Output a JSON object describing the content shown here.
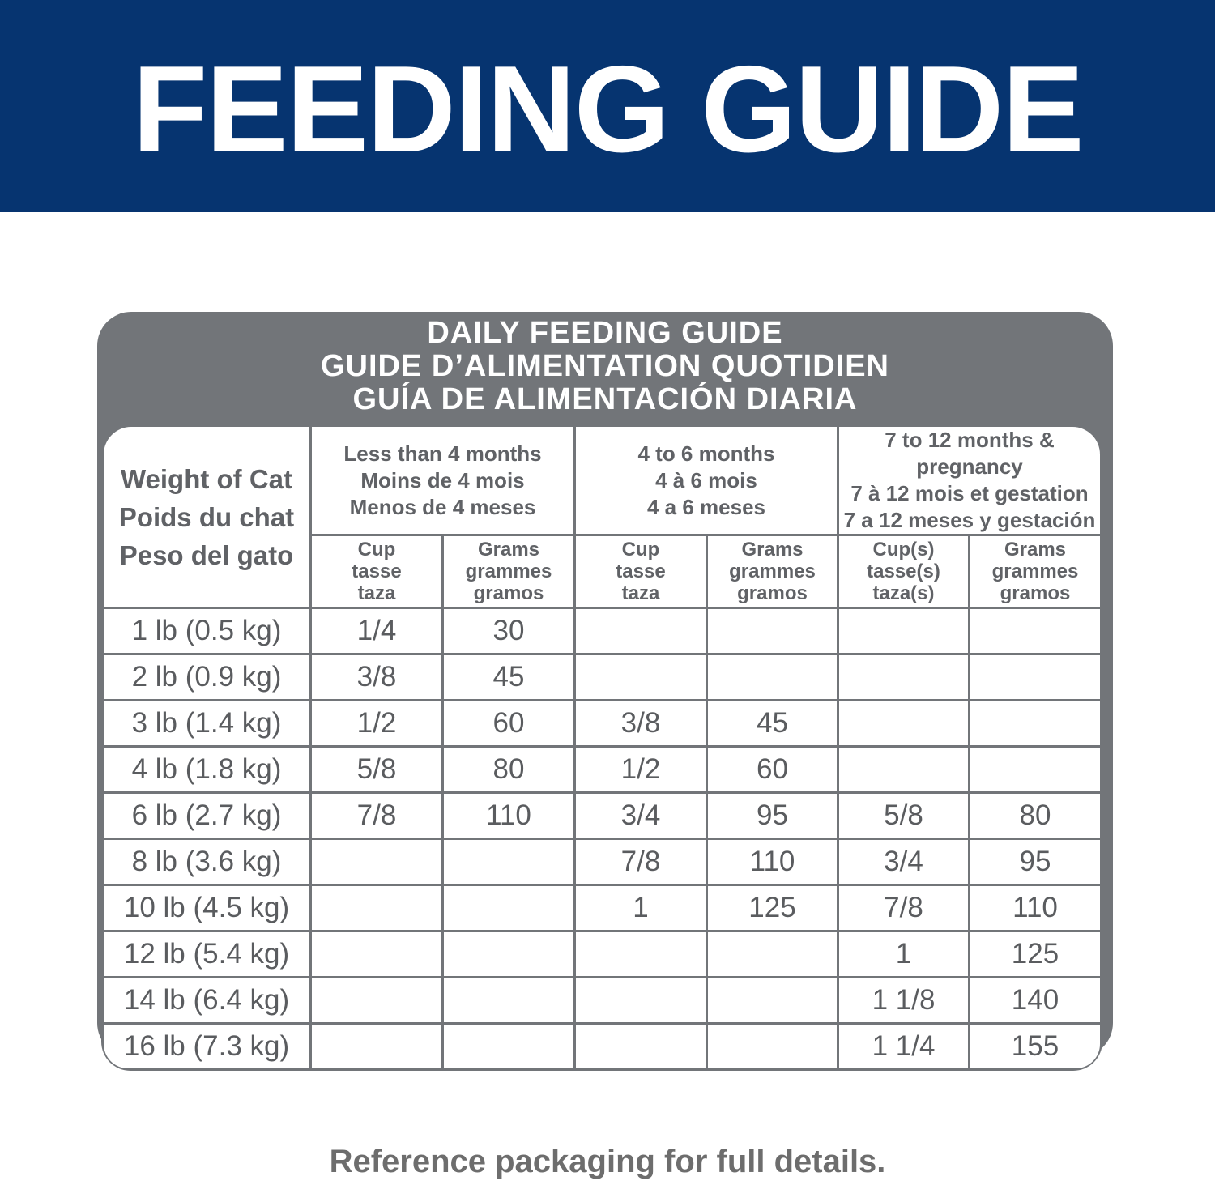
{
  "header": {
    "title": "FEEDING GUIDE"
  },
  "table": {
    "title": [
      "DAILY FEEDING GUIDE",
      "GUIDE D’ALIMENTATION QUOTIDIEN",
      "GUÍA DE ALIMENTACIÓN DIARIA"
    ],
    "weight_header": [
      "Weight of Cat",
      "Poids du chat",
      "Peso del gato"
    ],
    "age_groups": [
      [
        "Less than 4 months",
        "Moins de 4 mois",
        "Menos de 4 meses"
      ],
      [
        "4 to 6 months",
        "4 à 6 mois",
        "4 a 6 meses"
      ],
      [
        "7 to 12 months & pregnancy",
        "7 à 12 mois et gestation",
        "7 a 12 meses y gestación"
      ]
    ],
    "unit_headers": [
      [
        "Cup",
        "tasse",
        "taza"
      ],
      [
        "Grams",
        "grammes",
        "gramos"
      ],
      [
        "Cup",
        "tasse",
        "taza"
      ],
      [
        "Grams",
        "grammes",
        "gramos"
      ],
      [
        "Cup(s)",
        "tasse(s)",
        "taza(s)"
      ],
      [
        "Grams",
        "grammes",
        "gramos"
      ]
    ],
    "rows": [
      [
        "1 lb (0.5 kg)",
        "1/4",
        "30",
        null,
        null,
        null,
        null
      ],
      [
        "2 lb (0.9 kg)",
        "3/8",
        "45",
        null,
        null,
        null,
        null
      ],
      [
        "3 lb (1.4 kg)",
        "1/2",
        "60",
        "3/8",
        "45",
        null,
        null
      ],
      [
        "4 lb (1.8 kg)",
        "5/8",
        "80",
        "1/2",
        "60",
        null,
        null
      ],
      [
        "6 lb (2.7 kg)",
        "7/8",
        "110",
        "3/4",
        "95",
        "5/8",
        "80"
      ],
      [
        "8 lb (3.6 kg)",
        null,
        null,
        "7/8",
        "110",
        "3/4",
        "95"
      ],
      [
        "10 lb (4.5 kg)",
        null,
        null,
        "1",
        "125",
        "7/8",
        "110"
      ],
      [
        "12 lb (5.4 kg)",
        null,
        null,
        null,
        null,
        "1",
        "125"
      ],
      [
        "14 lb (6.4 kg)",
        null,
        null,
        null,
        null,
        "1 1/8",
        "140"
      ],
      [
        "16 lb (7.3 kg)",
        null,
        null,
        null,
        null,
        "1 1/4",
        "155"
      ]
    ]
  },
  "footer": {
    "note": "Reference packaging for full details."
  }
}
